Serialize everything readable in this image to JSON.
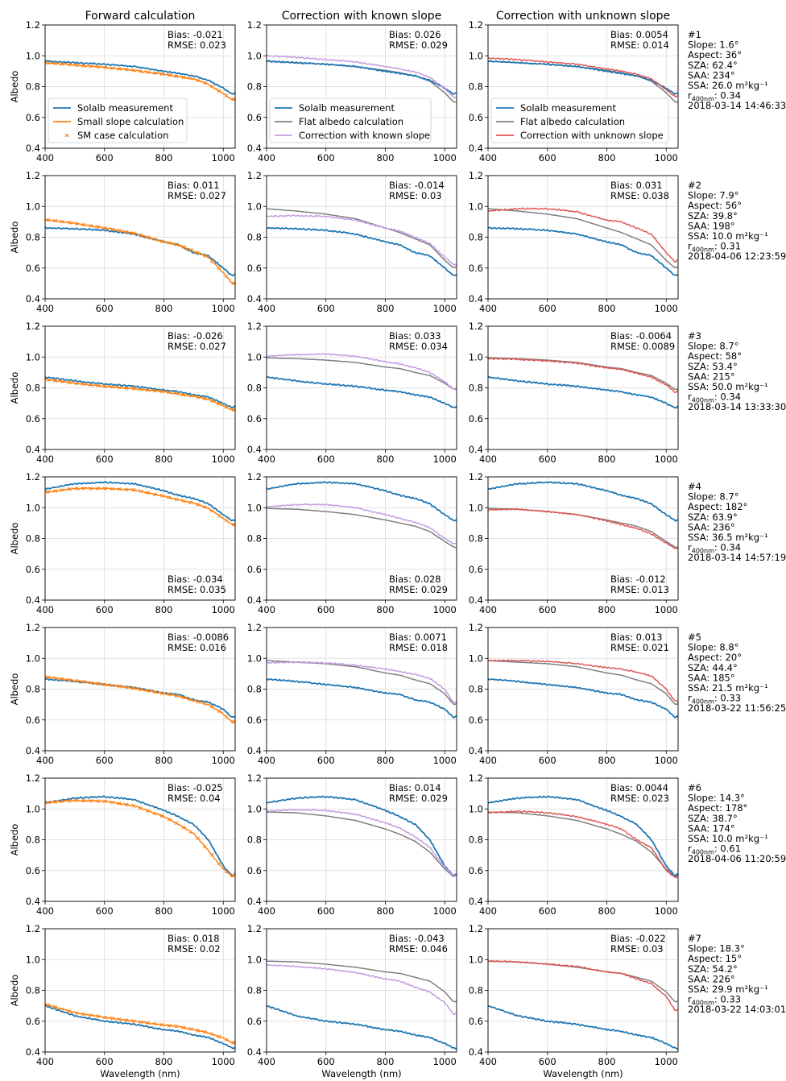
{
  "chart_data": {
    "type": "line",
    "column_titles": [
      "Forward calculation",
      "Correction with known slope",
      "Correction with unknown slope"
    ],
    "xlabel": "Wavelength (nm)",
    "ylabel": "Albedo",
    "xlim": [
      400,
      1040
    ],
    "ylim": [
      0.4,
      1.2
    ],
    "xticks": [
      "400",
      "600",
      "800",
      "1000"
    ],
    "yticks": [
      "0.4",
      "0.6",
      "0.8",
      "1.0",
      "1.2"
    ],
    "grid": true,
    "legends": [
      [
        "Solalb measurement",
        "Small slope calculation",
        "SM case calculation"
      ],
      [
        "Solalb measurement",
        "Flat albedo calculation",
        "Correction with known slope"
      ],
      [
        "Solalb measurement",
        "Flat albedo calculation",
        "Correction with unknown slope"
      ]
    ],
    "colors": {
      "measurement": "#1f77b4",
      "calculation": "#ff7f0e",
      "flat": "#7f7f7f",
      "known": "#c49be0",
      "unknown": "#e05555"
    },
    "x": [
      400,
      500,
      600,
      700,
      800,
      850,
      900,
      950,
      1000,
      1030,
      1040
    ],
    "cases": [
      {
        "info": [
          "#1",
          "Slope: 1.6°",
          "Aspect: 36°",
          "SZA: 62.4°",
          "SAA: 234°",
          "SSA: 26.0 m²kg⁻¹",
          "r400nm: 0.34",
          "2018-03-14 14:46:33"
        ],
        "stats": [
          [
            "Bias: -0.021",
            "RMSE: 0.023"
          ],
          [
            "Bias: 0.026",
            "RMSE: 0.029"
          ],
          [
            "Bias: 0.0054",
            "RMSE: 0.014"
          ]
        ],
        "measurement": [
          0.965,
          0.955,
          0.945,
          0.93,
          0.9,
          0.885,
          0.87,
          0.84,
          0.79,
          0.75,
          0.76
        ],
        "small_slope": [
          0.955,
          0.94,
          0.925,
          0.905,
          0.88,
          0.865,
          0.85,
          0.815,
          0.755,
          0.715,
          0.72
        ],
        "flat": [
          0.965,
          0.955,
          0.945,
          0.93,
          0.905,
          0.89,
          0.87,
          0.835,
          0.76,
          0.7,
          0.7
        ],
        "known": [
          1.0,
          0.99,
          0.975,
          0.96,
          0.93,
          0.915,
          0.895,
          0.86,
          0.79,
          0.73,
          0.73
        ],
        "unknown": [
          0.985,
          0.975,
          0.96,
          0.945,
          0.915,
          0.9,
          0.88,
          0.85,
          0.78,
          0.735,
          0.74
        ]
      },
      {
        "info": [
          "#2",
          "Slope: 7.9°",
          "Aspect: 56°",
          "SZA: 39.8°",
          "SAA: 198°",
          "SSA: 10.0 m²kg⁻¹",
          "r400nm: 0.31",
          "2018-04-06 12:23:59"
        ],
        "stats": [
          [
            "Bias: 0.011",
            "RMSE: 0.027"
          ],
          [
            "Bias: -0.014",
            "RMSE: 0.03"
          ],
          [
            "Bias: 0.031",
            "RMSE: 0.038"
          ]
        ],
        "measurement": [
          0.86,
          0.855,
          0.845,
          0.82,
          0.77,
          0.75,
          0.7,
          0.68,
          0.6,
          0.55,
          0.56
        ],
        "small_slope": [
          0.915,
          0.89,
          0.86,
          0.825,
          0.77,
          0.75,
          0.71,
          0.67,
          0.57,
          0.5,
          0.5
        ],
        "flat": [
          0.985,
          0.97,
          0.95,
          0.92,
          0.86,
          0.83,
          0.79,
          0.75,
          0.65,
          0.6,
          0.61
        ],
        "known": [
          0.935,
          0.94,
          0.935,
          0.91,
          0.86,
          0.84,
          0.8,
          0.76,
          0.67,
          0.62,
          0.625
        ],
        "unknown": [
          0.97,
          0.985,
          0.985,
          0.965,
          0.91,
          0.9,
          0.86,
          0.82,
          0.7,
          0.64,
          0.65
        ]
      },
      {
        "info": [
          "#3",
          "Slope: 8.7°",
          "Aspect: 58°",
          "SZA: 53.4°",
          "SAA: 215°",
          "SSA: 50.0 m²kg⁻¹",
          "r400nm: 0.34",
          "2018-03-14 13:33:30"
        ],
        "stats": [
          [
            "Bias: -0.026",
            "RMSE: 0.027"
          ],
          [
            "Bias: 0.033",
            "RMSE: 0.034"
          ],
          [
            "Bias: -0.0064",
            "RMSE: 0.0089"
          ]
        ],
        "measurement": [
          0.87,
          0.845,
          0.825,
          0.81,
          0.785,
          0.775,
          0.755,
          0.74,
          0.7,
          0.67,
          0.68
        ],
        "small_slope": [
          0.855,
          0.83,
          0.81,
          0.795,
          0.775,
          0.76,
          0.745,
          0.725,
          0.685,
          0.655,
          0.66
        ],
        "flat": [
          0.995,
          0.99,
          0.98,
          0.965,
          0.935,
          0.925,
          0.9,
          0.88,
          0.83,
          0.79,
          0.79
        ],
        "known": [
          1.005,
          1.015,
          1.02,
          1.005,
          0.97,
          0.955,
          0.93,
          0.9,
          0.84,
          0.79,
          0.795
        ],
        "unknown": [
          0.99,
          0.985,
          0.975,
          0.96,
          0.93,
          0.92,
          0.895,
          0.87,
          0.82,
          0.77,
          0.775
        ]
      },
      {
        "info": [
          "#4",
          "Slope: 8.7°",
          "Aspect: 182°",
          "SZA: 63.9°",
          "SAA: 236°",
          "SSA: 36.5 m²kg⁻¹",
          "r400nm: 0.34",
          "2018-03-14 14:57:19"
        ],
        "stats": [
          [
            "Bias: -0.034",
            "RMSE: 0.035"
          ],
          [
            "Bias: 0.028",
            "RMSE: 0.029"
          ],
          [
            "Bias: -0.012",
            "RMSE: 0.013"
          ]
        ],
        "measurement": [
          1.12,
          1.155,
          1.165,
          1.155,
          1.11,
          1.08,
          1.06,
          1.025,
          0.955,
          0.915,
          0.92
        ],
        "small_slope": [
          1.1,
          1.125,
          1.125,
          1.115,
          1.075,
          1.05,
          1.03,
          0.995,
          0.93,
          0.89,
          0.89
        ],
        "flat": [
          0.995,
          0.99,
          0.975,
          0.955,
          0.92,
          0.9,
          0.88,
          0.845,
          0.78,
          0.745,
          0.74
        ],
        "known": [
          1.005,
          1.02,
          1.02,
          1.0,
          0.955,
          0.93,
          0.905,
          0.87,
          0.8,
          0.765,
          0.765
        ],
        "unknown": [
          0.985,
          0.99,
          0.975,
          0.955,
          0.915,
          0.89,
          0.865,
          0.83,
          0.77,
          0.735,
          0.74
        ]
      },
      {
        "info": [
          "#5",
          "Slope: 8.8°",
          "Aspect: 20°",
          "SZA: 44.4°",
          "SAA: 185°",
          "SSA: 21.5 m²kg⁻¹",
          "r400nm: 0.33",
          "2018-03-22 11:56:25"
        ],
        "stats": [
          [
            "Bias: -0.0086",
            "RMSE: 0.016"
          ],
          [
            "Bias: 0.0071",
            "RMSE: 0.018"
          ],
          [
            "Bias: 0.013",
            "RMSE: 0.021"
          ]
        ],
        "measurement": [
          0.865,
          0.85,
          0.83,
          0.81,
          0.775,
          0.765,
          0.73,
          0.715,
          0.67,
          0.615,
          0.625
        ],
        "small_slope": [
          0.88,
          0.855,
          0.83,
          0.805,
          0.77,
          0.755,
          0.725,
          0.7,
          0.64,
          0.585,
          0.59
        ],
        "flat": [
          0.985,
          0.975,
          0.965,
          0.945,
          0.905,
          0.89,
          0.86,
          0.835,
          0.77,
          0.7,
          0.705
        ],
        "known": [
          0.97,
          0.975,
          0.97,
          0.955,
          0.93,
          0.915,
          0.895,
          0.87,
          0.8,
          0.71,
          0.72
        ],
        "unknown": [
          0.985,
          0.985,
          0.98,
          0.965,
          0.94,
          0.93,
          0.91,
          0.885,
          0.8,
          0.72,
          0.725
        ]
      },
      {
        "info": [
          "#6",
          "Slope: 14.3°",
          "Aspect: 178°",
          "SZA: 38.7°",
          "SAA: 174°",
          "SSA: 10.0 m²kg⁻¹",
          "r400nm: 0.61",
          "2018-04-06 11:20:59"
        ],
        "stats": [
          [
            "Bias: -0.025",
            "RMSE: 0.04"
          ],
          [
            "Bias: 0.014",
            "RMSE: 0.029"
          ],
          [
            "Bias: 0.0044",
            "RMSE: 0.023"
          ]
        ],
        "measurement": [
          1.04,
          1.07,
          1.08,
          1.06,
          0.99,
          0.95,
          0.9,
          0.8,
          0.63,
          0.565,
          0.58
        ],
        "small_slope": [
          1.04,
          1.055,
          1.05,
          1.02,
          0.95,
          0.9,
          0.84,
          0.73,
          0.61,
          0.56,
          0.575
        ],
        "flat": [
          0.98,
          0.975,
          0.955,
          0.925,
          0.87,
          0.835,
          0.79,
          0.72,
          0.61,
          0.56,
          0.57
        ],
        "known": [
          0.985,
          0.995,
          0.99,
          0.965,
          0.91,
          0.875,
          0.82,
          0.75,
          0.62,
          0.565,
          0.57
        ],
        "unknown": [
          0.975,
          0.985,
          0.975,
          0.95,
          0.9,
          0.87,
          0.8,
          0.75,
          0.6,
          0.555,
          0.565
        ]
      },
      {
        "info": [
          "#7",
          "Slope: 18.3°",
          "Aspect: 15°",
          "SZA: 54.2°",
          "SAA: 226°",
          "SSA: 29.9 m²kg⁻¹",
          "r400nm: 0.33",
          "2018-03-22 14:03:01"
        ],
        "stats": [
          [
            "Bias: 0.018",
            "RMSE: 0.02"
          ],
          [
            "Bias: -0.043",
            "RMSE: 0.046"
          ],
          [
            "Bias: -0.022",
            "RMSE: 0.03"
          ]
        ],
        "measurement": [
          0.7,
          0.635,
          0.6,
          0.58,
          0.545,
          0.535,
          0.51,
          0.495,
          0.455,
          0.425,
          0.425
        ],
        "small_slope": [
          0.71,
          0.655,
          0.625,
          0.6,
          0.575,
          0.565,
          0.545,
          0.525,
          0.49,
          0.46,
          0.46
        ],
        "flat": [
          0.99,
          0.985,
          0.97,
          0.95,
          0.92,
          0.91,
          0.885,
          0.86,
          0.79,
          0.725,
          0.73
        ],
        "known": [
          0.965,
          0.955,
          0.94,
          0.915,
          0.875,
          0.86,
          0.82,
          0.79,
          0.72,
          0.645,
          0.65
        ],
        "unknown": [
          0.99,
          0.985,
          0.97,
          0.955,
          0.92,
          0.91,
          0.875,
          0.845,
          0.76,
          0.67,
          0.67
        ]
      }
    ]
  }
}
